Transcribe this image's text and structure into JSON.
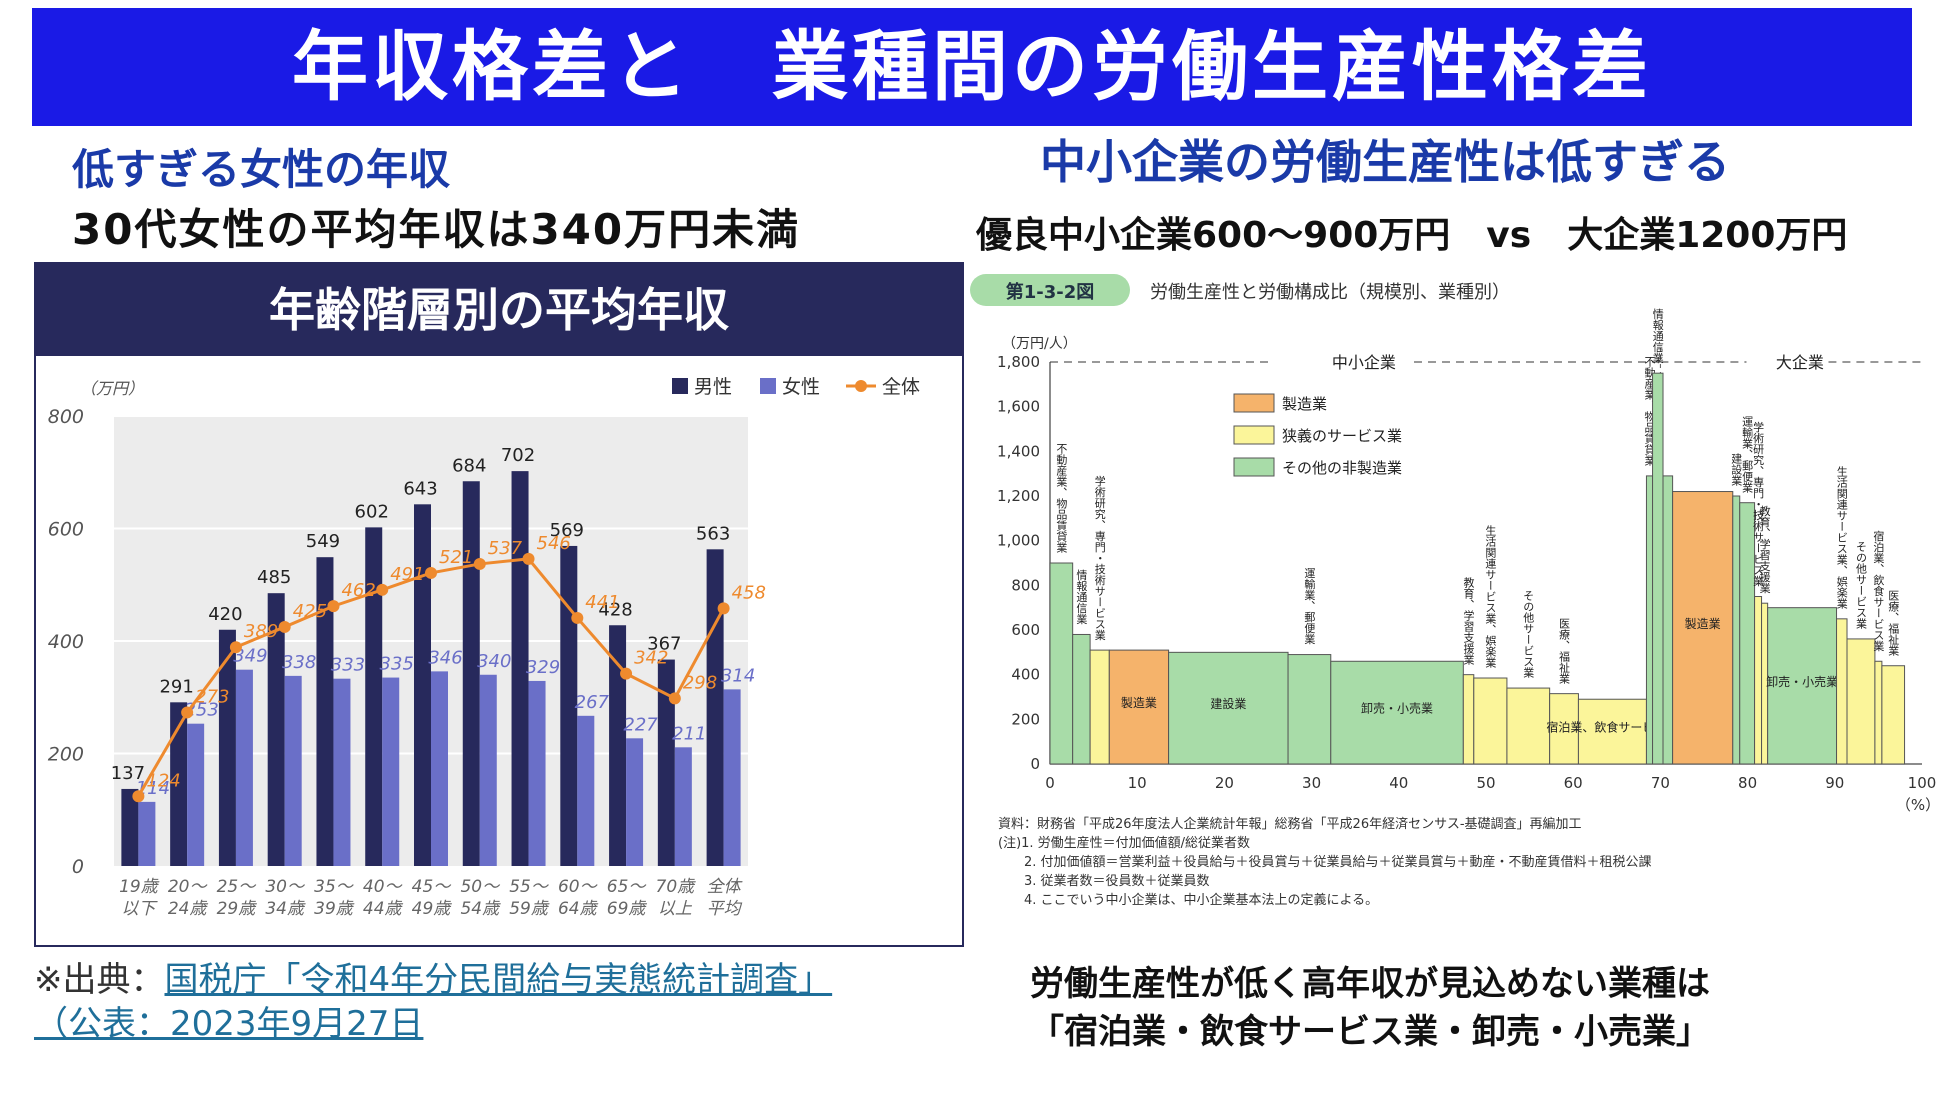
{
  "title": "年収格差と　業種間の労働生産性格差",
  "left": {
    "heading": "低すぎる女性の年収",
    "subheading": "30代女性の平均年収は340万円未満",
    "chart_header": "年齢階層別の平均年収",
    "source_prefix": "※出典：",
    "source_link": "国税庁「令和4年分民間給与実態統計調査」",
    "source_line2": "（公表：2023年9月27日"
  },
  "right": {
    "heading": "中小企業の労働生産性は低すぎる",
    "subheading": "優良中小企業600～900万円　vs　大企業1200万円",
    "note_line1": "労働生産性が低く高年収が見込めない業種は",
    "note_line2": "「宿泊業・飲食サービス業・卸売・小売業」"
  },
  "chart_data": [
    {
      "type": "bar",
      "title": "年齢階層別の平均年収",
      "ylabel": "（万円）",
      "ylim": [
        0,
        800
      ],
      "yticks": [
        0,
        200,
        400,
        600,
        800
      ],
      "grid": true,
      "legend_position": "top-right",
      "categories": [
        [
          "19歳",
          "以下"
        ],
        [
          "20～",
          "24歳"
        ],
        [
          "25～",
          "29歳"
        ],
        [
          "30～",
          "34歳"
        ],
        [
          "35～",
          "39歳"
        ],
        [
          "40～",
          "44歳"
        ],
        [
          "45～",
          "49歳"
        ],
        [
          "50～",
          "54歳"
        ],
        [
          "55～",
          "59歳"
        ],
        [
          "60～",
          "64歳"
        ],
        [
          "65～",
          "69歳"
        ],
        [
          "70歳",
          "以上"
        ],
        [
          "全体",
          "平均"
        ]
      ],
      "series": [
        {
          "name": "男性",
          "kind": "bar",
          "color": "#27295c",
          "values": [
            137,
            291,
            420,
            485,
            549,
            602,
            643,
            684,
            702,
            569,
            428,
            367,
            563
          ]
        },
        {
          "name": "女性",
          "kind": "bar",
          "color": "#6a6fc8",
          "values": [
            114,
            253,
            349,
            338,
            333,
            335,
            346,
            340,
            329,
            267,
            227,
            211,
            314
          ]
        },
        {
          "name": "全体",
          "kind": "line",
          "color": "#ee8a2e",
          "values": [
            124,
            273,
            389,
            425,
            462,
            491,
            521,
            537,
            546,
            441,
            342,
            298,
            458
          ]
        }
      ]
    },
    {
      "type": "bar",
      "figure_label": "第1-3-2図",
      "title": "労働生産性と労働構成比（規模別、業種別）",
      "ylabel": "（万円/人）",
      "xlabel": "（%）",
      "ylim": [
        0,
        1800
      ],
      "xlim": [
        0,
        100
      ],
      "yticks": [
        "0",
        "200",
        "400",
        "600",
        "800",
        "1,000",
        "1,200",
        "1,400",
        "1,600",
        "1,800"
      ],
      "xticks": [
        0,
        10,
        20,
        30,
        40,
        50,
        60,
        70,
        80,
        90,
        100
      ],
      "group_labels": [
        {
          "label": "中小企業",
          "from": 0,
          "to": 70
        },
        {
          "label": "大企業",
          "from": 70,
          "to": 100
        }
      ],
      "legend": [
        {
          "label": "製造業",
          "color": "#f5b36b"
        },
        {
          "label": "狭義のサービス業",
          "color": "#fbf59a"
        },
        {
          "label": "その他の非製造業",
          "color": "#a8dca8"
        }
      ],
      "segments": [
        {
          "label": "不動産業、物品賃貸業",
          "x0": 0,
          "x1": 2.6,
          "value": 900,
          "category": "その他の非製造業"
        },
        {
          "label": "情報通信業",
          "x0": 2.6,
          "x1": 4.6,
          "value": 580,
          "category": "その他の非製造業"
        },
        {
          "label": "学術研究、専門・技術サービス業",
          "x0": 4.6,
          "x1": 6.8,
          "value": 510,
          "category": "狭義のサービス業"
        },
        {
          "label": "製造業",
          "x0": 6.8,
          "x1": 13.6,
          "value": 510,
          "category": "製造業"
        },
        {
          "label": "建設業",
          "x0": 13.6,
          "x1": 27.3,
          "value": 500,
          "category": "その他の非製造業"
        },
        {
          "label": "運輸業、郵便業",
          "x0": 27.3,
          "x1": 32.2,
          "value": 490,
          "category": "その他の非製造業"
        },
        {
          "label": "卸売・小売業",
          "x0": 32.2,
          "x1": 47.4,
          "value": 460,
          "category": "その他の非製造業"
        },
        {
          "label": "教育、学習支援業",
          "x0": 47.4,
          "x1": 48.6,
          "value": 400,
          "category": "狭義のサービス業"
        },
        {
          "label": "生活関連サービス業、娯楽業",
          "x0": 48.6,
          "x1": 52.4,
          "value": 385,
          "category": "狭義のサービス業"
        },
        {
          "label": "その他サービス業",
          "x0": 52.4,
          "x1": 57.3,
          "value": 340,
          "category": "狭義のサービス業"
        },
        {
          "label": "医療、福祉業",
          "x0": 57.3,
          "x1": 60.6,
          "value": 315,
          "category": "狭義のサービス業"
        },
        {
          "label": "宿泊業、飲食サービス業",
          "x0": 60.6,
          "x1": 68.4,
          "value": 290,
          "category": "狭義のサービス業"
        },
        {
          "label": "不動産業、物品賃貸業",
          "x0": 68.4,
          "x1": 69.1,
          "value": 1290,
          "category": "その他の非製造業"
        },
        {
          "label": "情報通信業",
          "x0": 69.1,
          "x1": 70.3,
          "value": 1750,
          "category": "その他の非製造業"
        },
        {
          "label": "",
          "x0": 70.3,
          "x1": 71.4,
          "value": 1290,
          "category": "その他の非製造業"
        },
        {
          "label": "製造業",
          "x0": 71.4,
          "x1": 78.3,
          "value": 1220,
          "category": "製造業"
        },
        {
          "label": "建設業",
          "x0": 78.3,
          "x1": 79.1,
          "value": 1200,
          "category": "その他の非製造業"
        },
        {
          "label": "運輸業、郵便業",
          "x0": 79.1,
          "x1": 80.8,
          "value": 1170,
          "category": "その他の非製造業"
        },
        {
          "label": "学術研究、専門・技術サービス業",
          "x0": 80.8,
          "x1": 81.6,
          "value": 750,
          "category": "狭義のサービス業"
        },
        {
          "label": "教育、学習支援業",
          "x0": 81.6,
          "x1": 82.3,
          "value": 720,
          "category": "狭義のサービス業"
        },
        {
          "label": "卸売・小売業",
          "x0": 82.3,
          "x1": 90.2,
          "value": 700,
          "category": "その他の非製造業"
        },
        {
          "label": "生活関連サービス業、娯楽業",
          "x0": 90.2,
          "x1": 91.4,
          "value": 650,
          "category": "狭義のサービス業"
        },
        {
          "label": "その他サービス業",
          "x0": 91.4,
          "x1": 94.6,
          "value": 560,
          "category": "狭義のサービス業"
        },
        {
          "label": "宿泊業、飲食サービス業",
          "x0": 94.6,
          "x1": 95.4,
          "value": 460,
          "category": "狭義のサービス業"
        },
        {
          "label": "医療、福祉業",
          "x0": 95.4,
          "x1": 98.0,
          "value": 440,
          "category": "狭義のサービス業"
        }
      ],
      "notes": [
        "資料：財務省「平成26年度法人企業統計年報」総務省「平成26年経済センサス-基礎調査」再編加工",
        "(注)1. 労働生産性＝付加価値額/総従業者数",
        "2. 付加価値額＝営業利益＋役員給与＋役員賞与＋従業員給与＋従業員賞与＋動産・不動産賃借料＋租税公課",
        "3. 従業者数＝役員数＋従業員数",
        "4. ここでいう中小企業は、中小企業基本法上の定義による。"
      ]
    }
  ]
}
